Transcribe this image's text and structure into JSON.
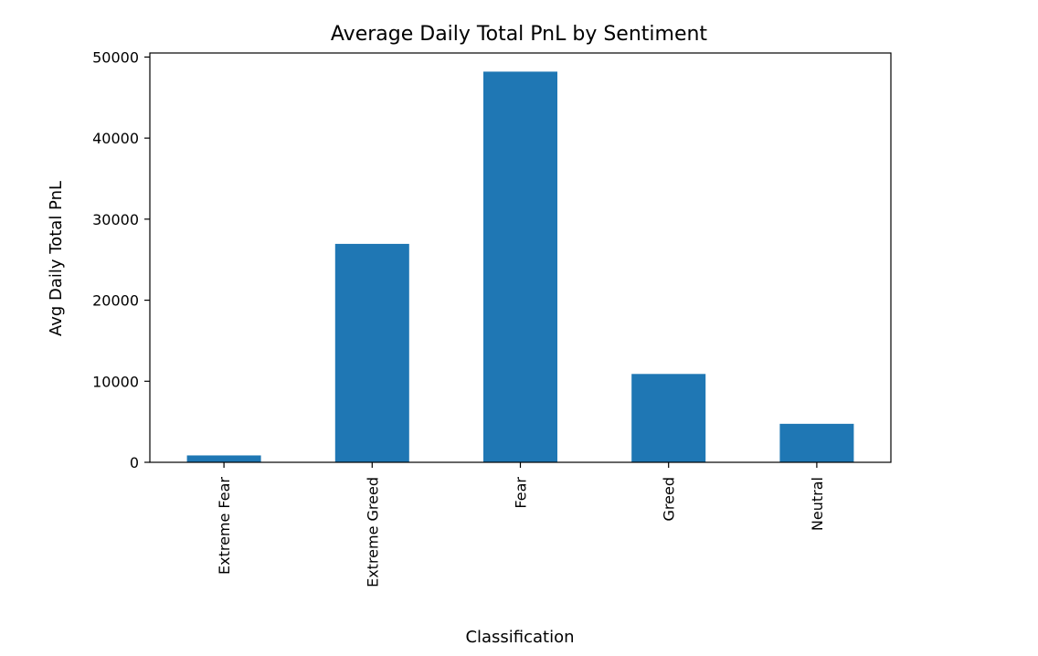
{
  "chart_data": {
    "type": "bar",
    "title": "Average Daily Total PnL by Sentiment",
    "xlabel": "Classification",
    "ylabel": "Avg Daily Total PnL",
    "categories": [
      "Extreme Fear",
      "Extreme Greed",
      "Fear",
      "Greed",
      "Neutral"
    ],
    "values": [
      850,
      26950,
      48200,
      10900,
      4750
    ],
    "ylim": [
      0,
      50500
    ],
    "yticks": [
      0,
      10000,
      20000,
      30000,
      40000,
      50000
    ],
    "ytick_labels": [
      "0",
      "10000",
      "20000",
      "30000",
      "40000",
      "50000"
    ],
    "bar_color": "#1f77b4",
    "grid": false,
    "legend": null
  }
}
